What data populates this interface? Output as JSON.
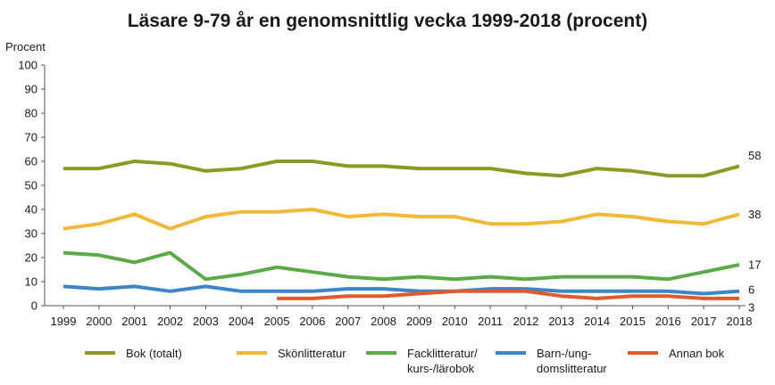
{
  "chart_data": {
    "type": "line",
    "title": "Läsare 9-79 år en genomsnittlig vecka 1999-2018 (procent)",
    "ylabel": "Procent",
    "xlabel": "",
    "ylim": [
      0,
      100
    ],
    "yticks": [
      0,
      10,
      20,
      30,
      40,
      50,
      60,
      70,
      80,
      90,
      100
    ],
    "grid": false,
    "legend_position": "bottom",
    "x": [
      "1999",
      "2000",
      "2001",
      "2002",
      "2003",
      "2004",
      "2005",
      "2006",
      "2007",
      "2008",
      "2009",
      "2010",
      "2011",
      "2012",
      "2013",
      "2014",
      "2015",
      "2016",
      "2017",
      "2018"
    ],
    "series": [
      {
        "name": "Bok (totalt)",
        "legend_lines": [
          "Bok (totalt)"
        ],
        "color": "#8c9a23",
        "values": [
          57,
          57,
          60,
          59,
          56,
          57,
          60,
          60,
          58,
          58,
          57,
          57,
          57,
          55,
          54,
          57,
          56,
          54,
          54,
          58
        ],
        "end_label": "58"
      },
      {
        "name": "Skönlitteratur",
        "legend_lines": [
          "Skönlitteratur"
        ],
        "color": "#f0b93a",
        "values": [
          32,
          34,
          38,
          32,
          37,
          39,
          39,
          40,
          37,
          38,
          37,
          37,
          34,
          34,
          35,
          38,
          37,
          35,
          34,
          38
        ],
        "end_label": "38"
      },
      {
        "name": "Facklitteratur/ kurs-/lärobok",
        "legend_lines": [
          "Facklitteratur/",
          "kurs-/lärobok"
        ],
        "color": "#5aaa46",
        "values": [
          22,
          21,
          18,
          22,
          11,
          13,
          16,
          14,
          12,
          11,
          12,
          11,
          12,
          11,
          12,
          12,
          12,
          11,
          14,
          17
        ],
        "end_label": "17"
      },
      {
        "name": "Barn-/ung- domslitteratur",
        "legend_lines": [
          "Barn-/ung-",
          "domslitteratur"
        ],
        "color": "#3a86c8",
        "values": [
          8,
          7,
          8,
          6,
          8,
          6,
          6,
          6,
          7,
          7,
          6,
          6,
          7,
          7,
          6,
          6,
          6,
          6,
          5,
          6
        ],
        "end_label": "6"
      },
      {
        "name": "Annan bok",
        "legend_lines": [
          "Annan bok"
        ],
        "color": "#e05a2b",
        "values": [
          null,
          null,
          null,
          null,
          null,
          null,
          3,
          3,
          4,
          4,
          5,
          6,
          6,
          6,
          4,
          3,
          4,
          4,
          3,
          3
        ],
        "end_label": "3"
      }
    ]
  }
}
